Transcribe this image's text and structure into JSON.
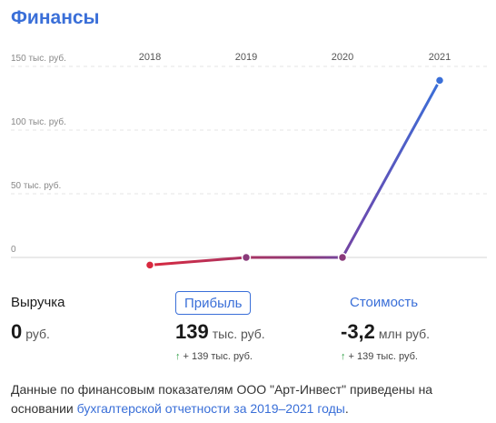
{
  "title": "Финансы",
  "chart_data": {
    "type": "line",
    "categories": [
      "2018",
      "2019",
      "2020",
      "2021"
    ],
    "values": [
      -6,
      0,
      0,
      139
    ],
    "ylim": [
      0,
      150
    ],
    "yticks": [
      {
        "value": 0,
        "label": "0"
      },
      {
        "value": 50,
        "label": "50 тыс. руб."
      },
      {
        "value": 100,
        "label": "100 тыс. руб."
      },
      {
        "value": 150,
        "label": "150 тыс. руб."
      }
    ],
    "point_colors": [
      "#d8293f",
      "#8a3a7a",
      "#8a3a7a",
      "#3a6fd8"
    ],
    "grid": true
  },
  "metrics": [
    {
      "label": "Выручка",
      "value": "0",
      "unit": "руб.",
      "delta_arrow": "",
      "delta": ""
    },
    {
      "label": "Прибыль",
      "value": "139",
      "unit": "тыс. руб.",
      "delta_arrow": "↑",
      "delta": "+ 139 тыс. руб."
    },
    {
      "label": "Стоимость",
      "value": "-3,2",
      "unit": "млн руб.",
      "delta_arrow": "↑",
      "delta": "+ 139 тыс. руб."
    }
  ],
  "footnote": {
    "text": "Данные по финансовым показателям ООО \"Арт-Инвест\" приведены на основании ",
    "link": "бухгалтерской отчетности за 2019–2021 годы",
    "end": "."
  }
}
